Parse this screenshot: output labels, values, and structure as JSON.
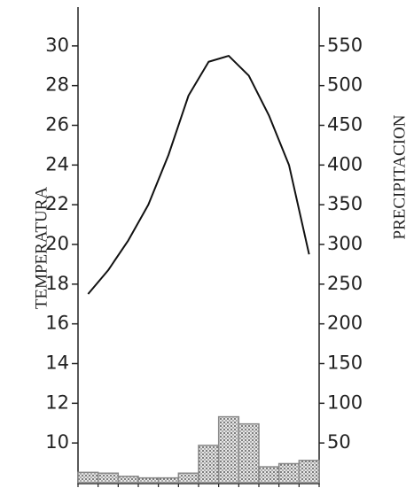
{
  "chart_data": {
    "type": "combo",
    "xlabel": null,
    "ylabel": "TEMPERATURA",
    "y2label": "PRECIPITACION",
    "categories": [
      null,
      null,
      null,
      null,
      null,
      null,
      null,
      null,
      null,
      null,
      null,
      null
    ],
    "ylim": [
      8,
      32
    ],
    "yticks": [
      10,
      12,
      14,
      16,
      18,
      20,
      22,
      24,
      26,
      28,
      30
    ],
    "y2lim": [
      0,
      600
    ],
    "y2ticks": [
      50,
      100,
      150,
      200,
      250,
      300,
      350,
      400,
      450,
      500,
      550
    ],
    "series": [
      {
        "type": "line",
        "axis": "y",
        "color": "#111",
        "values": [
          17.5,
          18.7,
          20.2,
          22,
          24.5,
          27.5,
          29.2,
          29.5,
          28.5,
          26.5,
          24,
          19.5
        ]
      },
      {
        "type": "bar",
        "axis": "y2",
        "color": "#8a8a8a",
        "values": [
          13,
          12,
          8,
          6,
          6,
          12,
          47,
          83,
          74,
          20,
          24,
          28
        ]
      }
    ]
  }
}
